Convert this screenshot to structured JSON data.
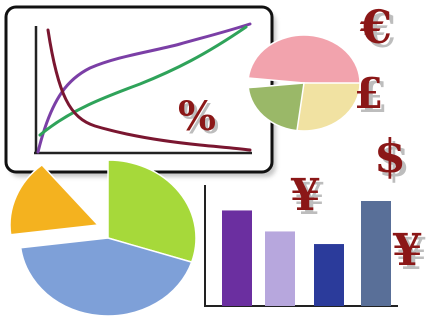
{
  "symbols": {
    "percent": "%",
    "euro": "€",
    "pound": "£",
    "dollar": "$",
    "yen_left": "¥",
    "yen_right": "¥"
  },
  "colors": {
    "symbol_fill": "#8b1717",
    "symbol_shadow": "#bdbdbd",
    "frame_border": "#111111",
    "frame_shadow": "#9a9a9a",
    "line_purple": "#7b3fa6",
    "line_green": "#2fa35a",
    "line_maroon": "#7a1630",
    "pie_small_pink": "#f2a3ad",
    "pie_small_green": "#9ab868",
    "pie_small_yellow": "#f1e2a2",
    "pie_big_green": "#a6d93a",
    "pie_big_blue": "#7ea0d8",
    "pie_big_orange": "#f4b21f",
    "bars": [
      "#6b2fa0",
      "#b7a7dd",
      "#2b3b9b",
      "#596f98"
    ]
  },
  "pie_small_fractions": [
    0.49,
    0.24,
    0.27
  ],
  "pie_big_fractions": [
    0.3,
    0.43,
    0.16,
    0.11
  ],
  "bar_values": [
    0.91,
    0.71,
    0.59,
    1.0
  ]
}
